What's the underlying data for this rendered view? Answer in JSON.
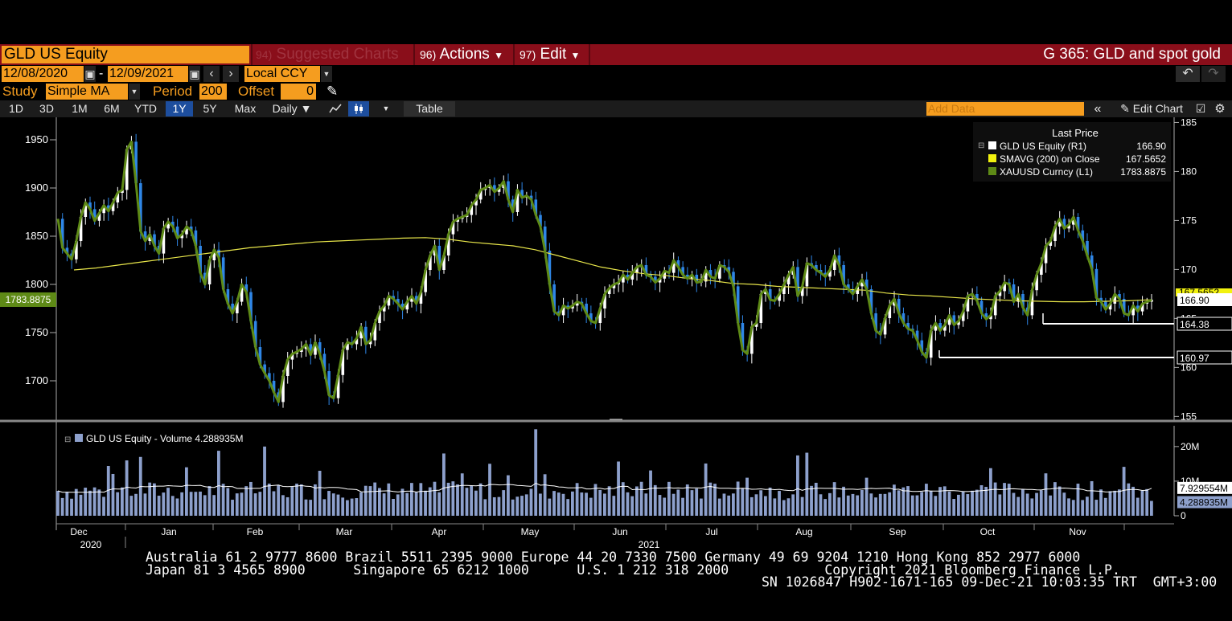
{
  "header": {
    "ticker": "GLD US Equity",
    "suggested": {
      "num": "94)",
      "label": "Suggested Charts"
    },
    "actions": {
      "num": "96)",
      "label": "Actions"
    },
    "edit": {
      "num": "97)",
      "label": "Edit"
    },
    "title": "G 365: GLD and spot gold"
  },
  "controls": {
    "start_date": "12/08/2020",
    "end_date": "12/09/2021",
    "date_sep": "-",
    "currency": "Local CCY",
    "study_label": "Study",
    "study_value": "Simple MA",
    "period_label": "Period",
    "period_value": "200",
    "offset_label": "Offset",
    "offset_value": "0"
  },
  "tabs": [
    "1D",
    "3D",
    "1M",
    "6M",
    "YTD",
    "1Y",
    "5Y",
    "Max"
  ],
  "active_tab": "1Y",
  "frequency": "Daily",
  "table_label": "Table",
  "add_data_placeholder": "Add Data",
  "edit_chart_label": "Edit Chart",
  "colors": {
    "accent_orange": "#f59d1f",
    "header_red": "#8a0e1a",
    "gold_line": "#5e8a16",
    "sma_line": "#e8e64a",
    "volume_bar": "#8da0cc",
    "up_candle": "#ffffff",
    "down_candle": "#2f86e6"
  },
  "chart_data": {
    "type": "line",
    "legend": {
      "header": "Last Price",
      "items": [
        {
          "name": "GLD US Equity",
          "axis": "(R1)",
          "value": "166.90",
          "color": "#ffffff"
        },
        {
          "name": "SMAVG (200)  on Close",
          "axis": "",
          "value": "167.5652",
          "color": "#f2f20f"
        },
        {
          "name": "XAUUSD Curncy",
          "axis": "(L1)",
          "value": "1783.8875",
          "color": "#5e8a16"
        }
      ]
    },
    "left_axis": {
      "ticks": [
        1700,
        1750,
        1800,
        1850,
        1900,
        1950
      ],
      "range": [
        1660,
        1970
      ],
      "last_label": "1783.8875"
    },
    "right_axis": {
      "ticks": [
        155,
        160,
        165,
        170,
        175,
        180,
        185
      ],
      "range": [
        154.7,
        185.2
      ],
      "tags": [
        "167.5652",
        "166.90",
        "164.38",
        "160.97"
      ]
    },
    "x_labels": [
      "Dec",
      "Jan",
      "Feb",
      "Mar",
      "Apr",
      "May",
      "Jun",
      "Jul",
      "Aug",
      "Sep",
      "Oct",
      "Nov"
    ],
    "year_labels": [
      "2020",
      "2021"
    ],
    "xauusd": [
      1868,
      1838,
      1832,
      1826,
      1845,
      1870,
      1885,
      1878,
      1866,
      1874,
      1882,
      1876,
      1885,
      1895,
      1898,
      1940,
      1948,
      1905,
      1855,
      1845,
      1852,
      1840,
      1832,
      1858,
      1865,
      1860,
      1848,
      1852,
      1860,
      1856,
      1840,
      1812,
      1800,
      1825,
      1836,
      1828,
      1795,
      1780,
      1770,
      1782,
      1800,
      1792,
      1762,
      1735,
      1717,
      1708,
      1700,
      1688,
      1678,
      1705,
      1722,
      1728,
      1730,
      1733,
      1738,
      1727,
      1740,
      1728,
      1710,
      1685,
      1682,
      1706,
      1732,
      1740,
      1738,
      1744,
      1756,
      1738,
      1742,
      1760,
      1772,
      1778,
      1788,
      1785,
      1780,
      1774,
      1782,
      1788,
      1780,
      1792,
      1815,
      1830,
      1840,
      1815,
      1830,
      1852,
      1865,
      1868,
      1870,
      1872,
      1882,
      1888,
      1898,
      1900,
      1903,
      1896,
      1900,
      1907,
      1888,
      1875,
      1898,
      1890,
      1892,
      1888,
      1872,
      1860,
      1835,
      1800,
      1772,
      1768,
      1778,
      1775,
      1778,
      1782,
      1780,
      1770,
      1762,
      1760,
      1775,
      1790,
      1796,
      1800,
      1802,
      1810,
      1805,
      1812,
      1818,
      1820,
      1810,
      1808,
      1802,
      1806,
      1814,
      1812,
      1825,
      1818,
      1810,
      1806,
      1810,
      1802,
      1803,
      1815,
      1808,
      1806,
      1820,
      1818,
      1813,
      1798,
      1760,
      1732,
      1728,
      1756,
      1760,
      1790,
      1795,
      1784,
      1783,
      1790,
      1800,
      1810,
      1818,
      1788,
      1798,
      1822,
      1820,
      1815,
      1812,
      1808,
      1815,
      1830,
      1820,
      1800,
      1795,
      1790,
      1798,
      1805,
      1795,
      1770,
      1752,
      1748,
      1765,
      1778,
      1785,
      1770,
      1760,
      1754,
      1752,
      1742,
      1730,
      1724,
      1752,
      1760,
      1752,
      1758,
      1768,
      1758,
      1762,
      1772,
      1788,
      1790,
      1783,
      1770,
      1764,
      1768,
      1788,
      1793,
      1802,
      1800,
      1782,
      1790,
      1776,
      1768,
      1794,
      1810,
      1822,
      1840,
      1845,
      1860,
      1868,
      1858,
      1862,
      1870,
      1856,
      1845,
      1830,
      1816,
      1786,
      1782,
      1774,
      1780,
      1790,
      1785,
      1770,
      1768,
      1778,
      1772,
      1780,
      1782,
      1784
    ],
    "sma_left": [
      1815,
      1817,
      1820,
      1823,
      1826,
      1829,
      1832,
      1835,
      1838,
      1840,
      1842,
      1844,
      1845,
      1846,
      1847,
      1848,
      1848.5,
      1847,
      1844,
      1842,
      1840,
      1836,
      1830,
      1824,
      1818,
      1814,
      1811,
      1809,
      1806,
      1804,
      1801,
      1800,
      1798,
      1797,
      1796,
      1795,
      1794,
      1791,
      1789,
      1788,
      1786.5,
      1785,
      1784,
      1783,
      1782.5,
      1782,
      1782,
      1782.5,
      1783,
      1784
    ],
    "volume": {
      "label": "GLD US Equity - Volume",
      "value": "4.288935M",
      "ticks": [
        "0",
        "10M",
        "20M"
      ],
      "tags": [
        "7.929554M",
        "4.288935M"
      ],
      "ma_value": 7.93,
      "last_value": 4.29,
      "max": 26
    }
  },
  "footer": {
    "line1": "Australia 61 2 9777 8600 Brazil 5511 2395 9000 Europe 44 20 7330 7500 Germany 49 69 9204 1210 Hong Kong 852 2977 6000",
    "line2": "Japan 81 3 4565 8900      Singapore 65 6212 1000      U.S. 1 212 318 2000            Copyright 2021 Bloomberg Finance L.P.",
    "line3": "SN 1026847 H902-1671-165 09-Dec-21 10:03:35 TRT  GMT+3:00"
  }
}
